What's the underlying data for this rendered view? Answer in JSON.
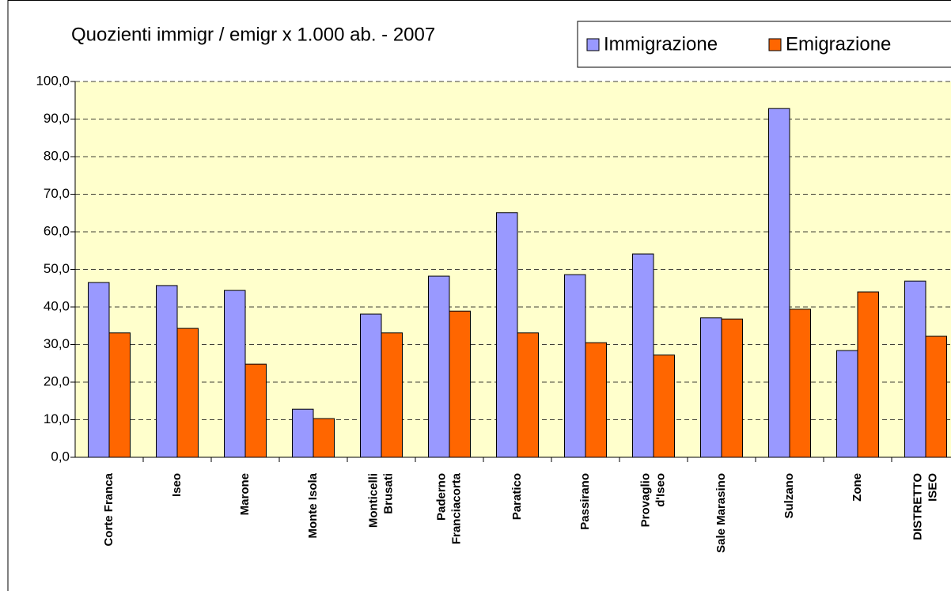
{
  "chart_data": {
    "type": "bar",
    "title": "Quozienti immigr / emigr x 1.000 ab. - 2007",
    "categories": [
      [
        "Corte Franca"
      ],
      [
        "Iseo"
      ],
      [
        "Marone"
      ],
      [
        "Monte Isola"
      ],
      [
        "Monticelli",
        "Brusati"
      ],
      [
        "Paderno",
        "Franciacorta"
      ],
      [
        "Paratico"
      ],
      [
        "Passirano"
      ],
      [
        "Provaglio",
        "d'Iseo"
      ],
      [
        "Sale Marasino"
      ],
      [
        "Sulzano"
      ],
      [
        "Zone"
      ],
      [
        "DISTRETTO",
        "ISEO"
      ]
    ],
    "series": [
      {
        "name": "Immigrazione",
        "color": "#9999ff",
        "values": [
          46.5,
          45.7,
          44.4,
          12.8,
          38.1,
          48.2,
          65.1,
          48.6,
          54.1,
          37.1,
          92.8,
          28.4,
          46.9
        ]
      },
      {
        "name": "Emigrazione",
        "color": "#ff6600",
        "values": [
          33.1,
          34.3,
          24.8,
          10.3,
          33.1,
          38.9,
          33.1,
          30.5,
          27.2,
          36.8,
          39.4,
          44.0,
          32.2
        ]
      }
    ],
    "ylim": [
      0,
      100
    ],
    "yticks": [
      {
        "value": 0,
        "label": "0,0"
      },
      {
        "value": 10,
        "label": "10,0"
      },
      {
        "value": 20,
        "label": "20,0"
      },
      {
        "value": 30,
        "label": "30,0"
      },
      {
        "value": 40,
        "label": "40,0"
      },
      {
        "value": 50,
        "label": "50,0"
      },
      {
        "value": 60,
        "label": "60,0"
      },
      {
        "value": 70,
        "label": "70,0"
      },
      {
        "value": 80,
        "label": "80,0"
      },
      {
        "value": 90,
        "label": "90,0"
      },
      {
        "value": 100,
        "label": "100,0"
      }
    ],
    "grid": true,
    "legend": "top-right"
  }
}
